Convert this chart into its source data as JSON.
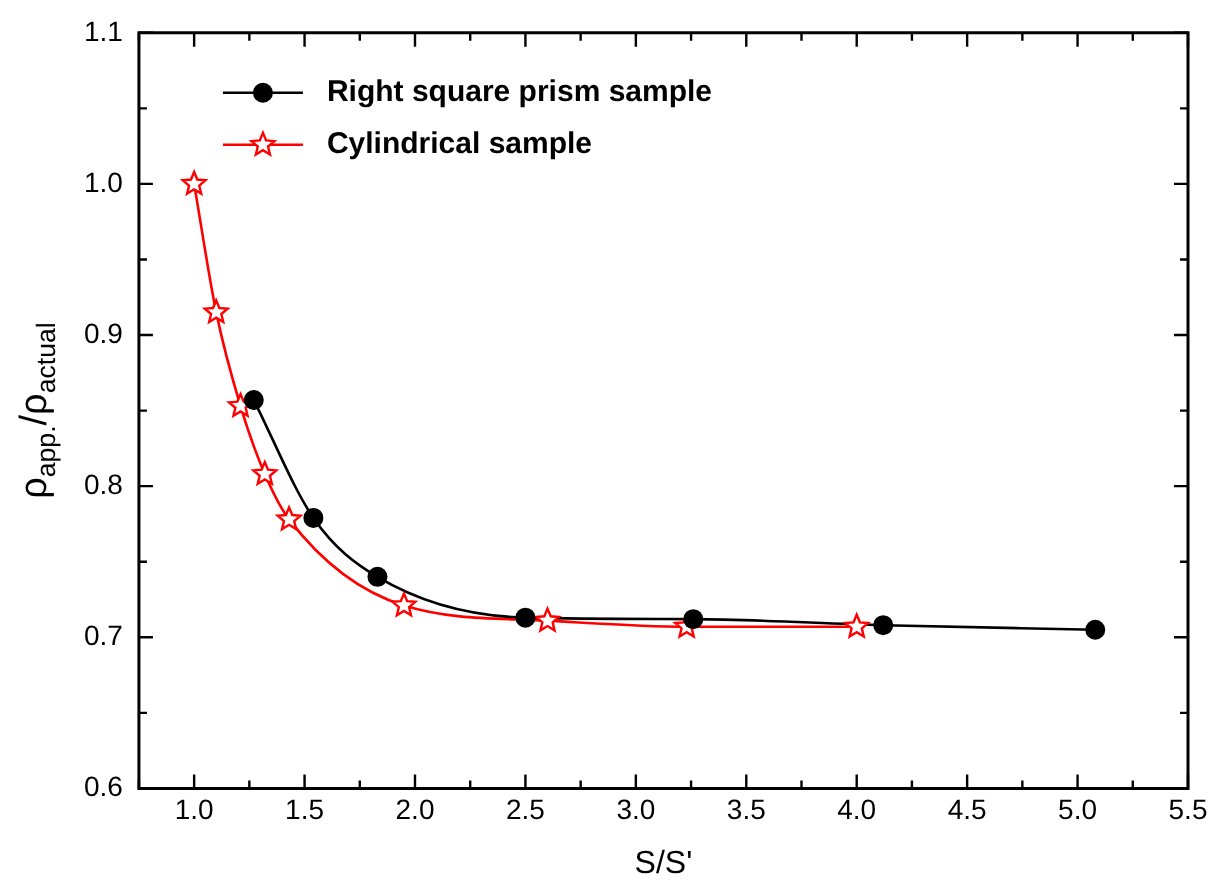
{
  "chart_data": {
    "type": "line",
    "xlabel": "S/S'",
    "ylabel": "ρ$_{app.}$/ρ$_{actual}$",
    "xlim": [
      0.75,
      5.5
    ],
    "xticks": [
      {
        "value": 1,
        "label": "1.0"
      },
      {
        "value": 1.5,
        "label": "1.5"
      },
      {
        "value": 2,
        "label": "2.0"
      },
      {
        "value": 2.5,
        "label": "2.5"
      },
      {
        "value": 3,
        "label": "3.0"
      },
      {
        "value": 3.5,
        "label": "3.5"
      },
      {
        "value": 4,
        "label": "4.0"
      },
      {
        "value": 4.5,
        "label": "4.5"
      },
      {
        "value": 5,
        "label": "5.0"
      },
      {
        "value": 5.5,
        "label": "5.5"
      }
    ],
    "ylim": [
      0.6,
      1.1
    ],
    "yticks": [
      {
        "value": 0.6,
        "label": "0.6"
      },
      {
        "value": 0.7,
        "label": "0.7"
      },
      {
        "value": 0.8,
        "label": "0.8"
      },
      {
        "value": 0.9,
        "label": "0.9"
      },
      {
        "value": 1.0,
        "label": "1.0"
      },
      {
        "value": 1.1,
        "label": "1.1"
      }
    ],
    "grid": false,
    "legend": "top left",
    "line_style": "solid",
    "series": [
      {
        "name": "Right square prism sample",
        "color": "#000000",
        "marker": "circle",
        "x": [
          1.27,
          1.54,
          1.83,
          2.5,
          3.26,
          4.12,
          5.08
        ],
        "values": [
          0.857,
          0.779,
          0.74,
          0.713,
          0.712,
          0.708,
          0.705
        ]
      },
      {
        "name": "Cylindrical sample",
        "color": "#ff0000",
        "marker": "star",
        "x": [
          1.0,
          1.1,
          1.21,
          1.32,
          1.43,
          1.95,
          2.6,
          3.23,
          4.0
        ],
        "values": [
          1.0,
          0.915,
          0.853,
          0.808,
          0.778,
          0.721,
          0.711,
          0.707,
          0.707
        ]
      }
    ]
  }
}
